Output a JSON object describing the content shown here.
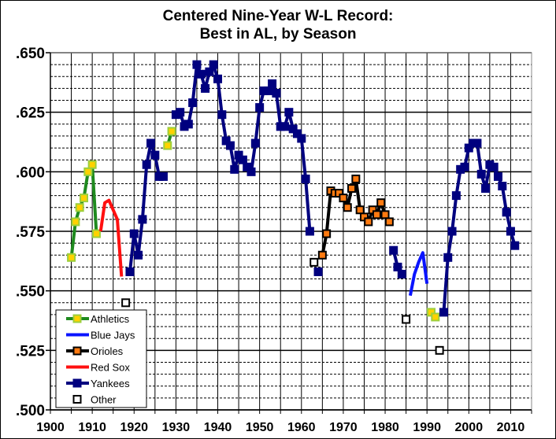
{
  "chart_data": {
    "type": "line",
    "title_lines": [
      "Centered Nine-Year  W-L Record:",
      "Best in AL, by Season"
    ],
    "xlabel": "",
    "ylabel": "",
    "xlim": [
      1900,
      2015
    ],
    "ylim": [
      0.5,
      0.65
    ],
    "x_ticks": [
      "1900",
      "1910",
      "1920",
      "1930",
      "1940",
      "1950",
      "1960",
      "1970",
      "1980",
      "1990",
      "2000",
      "2010"
    ],
    "y_ticks": [
      ".500",
      ".525",
      ".550",
      ".575",
      ".600",
      ".625",
      ".650"
    ],
    "grid": {
      "vertical_every_years": 5,
      "major_y": 0.025,
      "minor_y_dashed": 0.005
    },
    "legend_position": "bottom-left",
    "series": [
      {
        "name": "Athletics",
        "line_color": "#1f8a1f",
        "marker": "square",
        "marker_fill": "#ffd200",
        "marker_edge": "#9ccf3c",
        "segments": [
          [
            [
              1905,
              0.564
            ],
            [
              1906,
              0.579
            ],
            [
              1907,
              0.585
            ],
            [
              1908,
              0.589
            ],
            [
              1909,
              0.6
            ],
            [
              1910,
              0.603
            ],
            [
              1911,
              0.574
            ]
          ],
          [
            [
              1928,
              0.611
            ],
            [
              1929,
              0.617
            ]
          ],
          [
            [
              1991,
              0.541
            ],
            [
              1992,
              0.539
            ]
          ]
        ]
      },
      {
        "name": "Blue Jays",
        "line_color": "#0a14ff",
        "marker": "none",
        "segments": [
          [
            [
              1986,
              0.548
            ],
            [
              1987,
              0.557
            ],
            [
              1988,
              0.562
            ],
            [
              1989,
              0.566
            ],
            [
              1990,
              0.553
            ]
          ]
        ]
      },
      {
        "name": "Orioles",
        "line_color": "#000000",
        "marker": "square",
        "marker_fill": "#ff7a10",
        "marker_edge": "#000000",
        "segments": [
          [
            [
              1965,
              0.565
            ],
            [
              1966,
              0.574
            ],
            [
              1967,
              0.592
            ],
            [
              1968,
              0.591
            ],
            [
              1969,
              0.591
            ],
            [
              1970,
              0.589
            ],
            [
              1971,
              0.585
            ],
            [
              1972,
              0.593
            ],
            [
              1973,
              0.597
            ],
            [
              1974,
              0.584
            ],
            [
              1975,
              0.581
            ],
            [
              1976,
              0.579
            ],
            [
              1977,
              0.584
            ],
            [
              1978,
              0.582
            ],
            [
              1979,
              0.587
            ],
            [
              1980,
              0.582
            ],
            [
              1981,
              0.579
            ]
          ]
        ]
      },
      {
        "name": "Red Sox",
        "line_color": "#ff1010",
        "marker": "none",
        "segments": [
          [
            [
              1912,
              0.575
            ],
            [
              1913,
              0.587
            ],
            [
              1914,
              0.588
            ],
            [
              1915,
              0.584
            ],
            [
              1916,
              0.58
            ],
            [
              1917,
              0.556
            ]
          ]
        ]
      },
      {
        "name": "Yankees",
        "line_color": "#00007f",
        "marker": "square",
        "marker_fill": "#00007f",
        "marker_edge": "#00007f",
        "segments": [
          [
            [
              1919,
              0.558
            ],
            [
              1920,
              0.574
            ],
            [
              1921,
              0.565
            ],
            [
              1922,
              0.58
            ],
            [
              1923,
              0.603
            ],
            [
              1924,
              0.612
            ],
            [
              1925,
              0.607
            ],
            [
              1926,
              0.598
            ],
            [
              1927,
              0.598
            ]
          ],
          [
            [
              1930,
              0.624
            ],
            [
              1931,
              0.625
            ],
            [
              1932,
              0.619
            ],
            [
              1933,
              0.62
            ],
            [
              1934,
              0.629
            ],
            [
              1935,
              0.645
            ],
            [
              1936,
              0.641
            ],
            [
              1937,
              0.635
            ],
            [
              1938,
              0.642
            ],
            [
              1939,
              0.645
            ],
            [
              1940,
              0.639
            ],
            [
              1941,
              0.624
            ],
            [
              1942,
              0.613
            ],
            [
              1943,
              0.611
            ],
            [
              1944,
              0.601
            ],
            [
              1945,
              0.607
            ],
            [
              1946,
              0.605
            ],
            [
              1947,
              0.602
            ],
            [
              1948,
              0.6
            ],
            [
              1949,
              0.612
            ],
            [
              1950,
              0.627
            ],
            [
              1951,
              0.634
            ],
            [
              1952,
              0.634
            ],
            [
              1953,
              0.637
            ],
            [
              1954,
              0.633
            ],
            [
              1955,
              0.619
            ],
            [
              1956,
              0.619
            ],
            [
              1957,
              0.625
            ],
            [
              1958,
              0.618
            ],
            [
              1959,
              0.616
            ],
            [
              1960,
              0.614
            ],
            [
              1961,
              0.597
            ],
            [
              1962,
              0.575
            ]
          ],
          [
            [
              1964,
              0.558
            ]
          ],
          [
            [
              1982,
              0.567
            ],
            [
              1983,
              0.56
            ],
            [
              1984,
              0.557
            ]
          ],
          [
            [
              1994,
              0.541
            ],
            [
              1995,
              0.564
            ],
            [
              1996,
              0.575
            ],
            [
              1997,
              0.59
            ],
            [
              1998,
              0.601
            ],
            [
              1999,
              0.602
            ],
            [
              2000,
              0.61
            ],
            [
              2001,
              0.612
            ],
            [
              2002,
              0.612
            ],
            [
              2003,
              0.599
            ],
            [
              2004,
              0.593
            ],
            [
              2005,
              0.603
            ],
            [
              2006,
              0.602
            ],
            [
              2007,
              0.598
            ],
            [
              2008,
              0.594
            ],
            [
              2009,
              0.583
            ],
            [
              2010,
              0.575
            ],
            [
              2011,
              0.569
            ]
          ]
        ]
      },
      {
        "name": "Other",
        "line_color": "none",
        "marker": "hollow-square",
        "marker_fill": "#ffffff",
        "marker_edge": "#000000",
        "segments": [
          [
            [
              1918,
              0.545
            ]
          ],
          [
            [
              1963,
              0.562
            ]
          ],
          [
            [
              1985,
              0.538
            ]
          ],
          [
            [
              1993,
              0.525
            ]
          ]
        ]
      }
    ]
  }
}
